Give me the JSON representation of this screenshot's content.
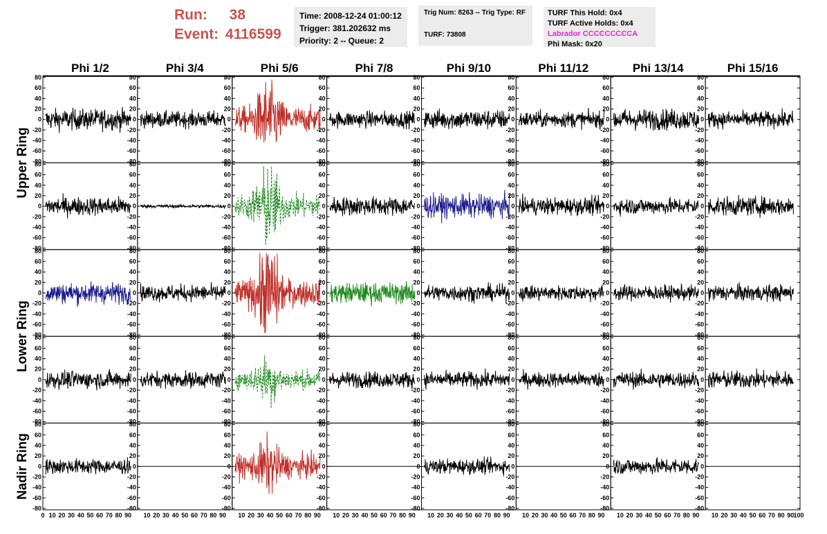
{
  "header": {
    "run_label": "Run:",
    "run_value": "38",
    "event_label": "Event:",
    "event_value": "4116599",
    "time_line": "Time: 2008-12-24 01:00:12",
    "trigger_line": "Trigger: 381.202632 ms",
    "priority_line": "Priority: 2 -- Queue: 2",
    "trig_line": "Trig Num: 8263 -- Trig Type: RF",
    "turf_line": "TURF: 73808",
    "turf_hold_line": "TURF This Hold: 0x4",
    "turf_active_line": "TURF Active Holds: 0x4",
    "labrador_line": "Labrador CCCCCCCCCA",
    "phi_mask_line": "Phi Mask: 0x20",
    "labrador_color": "#e02bd7",
    "run_color": "#c9534f"
  },
  "chart_data": {
    "type": "line",
    "columns": [
      "Phi 1/2",
      "Phi 3/4",
      "Phi 5/6",
      "Phi 7/8",
      "Phi 9/10",
      "Phi 11/12",
      "Phi 13/14",
      "Phi 15/16"
    ],
    "rings": [
      {
        "name": "Upper Ring",
        "rows": 2
      },
      {
        "name": "Lower Ring",
        "rows": 2
      },
      {
        "name": "Nadir Ring",
        "rows": 1
      }
    ],
    "xlim": [
      0,
      100
    ],
    "ylim": [
      -80,
      80
    ],
    "y_ticks": [
      "80",
      "60",
      "40",
      "20",
      "0",
      "-20",
      "-40",
      "-60",
      "-80"
    ],
    "x_ticks": [
      "10",
      "20",
      "30",
      "40",
      "50",
      "60",
      "70",
      "80",
      "90"
    ],
    "x_first_tick": "0",
    "x_last_tick": "100",
    "colors": {
      "black": "#000000",
      "red": "#c0302a",
      "green": "#1f8a1f",
      "blue": "#1c1c8c"
    },
    "panels": [
      [
        {
          "color": "black",
          "amp": 18,
          "dashed": false
        },
        {
          "color": "black",
          "amp": 14,
          "dashed": false
        },
        {
          "color": "red",
          "amp": 22,
          "burst": 50,
          "dashed": false
        },
        {
          "color": "black",
          "amp": 14,
          "dashed": false
        },
        {
          "color": "black",
          "amp": 17,
          "dashed": false
        },
        {
          "color": "black",
          "amp": 14,
          "dashed": false
        },
        {
          "color": "black",
          "amp": 18,
          "dashed": false
        },
        {
          "color": "black",
          "amp": 14,
          "dashed": false
        }
      ],
      [
        {
          "color": "black",
          "amp": 16,
          "dashed": false
        },
        {
          "color": "black",
          "amp": 3,
          "dashed": false
        },
        {
          "color": "green",
          "amp": 20,
          "burst": 60,
          "dashed": true
        },
        {
          "color": "black",
          "amp": 16,
          "dashed": false
        },
        {
          "color": "blue",
          "amp": 20,
          "dashed": false
        },
        {
          "color": "black",
          "amp": 15,
          "dashed": false
        },
        {
          "color": "black",
          "amp": 14,
          "dashed": false
        },
        {
          "color": "black",
          "amp": 16,
          "dashed": false
        }
      ],
      [
        {
          "color": "blue",
          "amp": 18,
          "dashed": false
        },
        {
          "color": "black",
          "amp": 14,
          "dashed": false
        },
        {
          "color": "red",
          "amp": 22,
          "burst": 70,
          "dashed": false
        },
        {
          "color": "green",
          "amp": 18,
          "dashed": false
        },
        {
          "color": "black",
          "amp": 14,
          "dashed": false
        },
        {
          "color": "black",
          "amp": 13,
          "dashed": false
        },
        {
          "color": "black",
          "amp": 13,
          "dashed": false
        },
        {
          "color": "black",
          "amp": 14,
          "dashed": false
        }
      ],
      [
        {
          "color": "black",
          "amp": 15,
          "dashed": false
        },
        {
          "color": "black",
          "amp": 14,
          "dashed": false
        },
        {
          "color": "green",
          "amp": 16,
          "burst": 28,
          "dashed": true
        },
        {
          "color": "black",
          "amp": 14,
          "dashed": false
        },
        {
          "color": "black",
          "amp": 14,
          "dashed": false
        },
        {
          "color": "black",
          "amp": 13,
          "dashed": false
        },
        {
          "color": "black",
          "amp": 14,
          "dashed": false
        },
        {
          "color": "black",
          "amp": 15,
          "dashed": false
        }
      ],
      [
        {
          "color": "black",
          "amp": 13,
          "dashed": false
        },
        {
          "color": "flat",
          "amp": 0,
          "dashed": false
        },
        {
          "color": "red",
          "amp": 20,
          "burst": 30,
          "dashed": false
        },
        {
          "color": "flat",
          "amp": 0,
          "dashed": false
        },
        {
          "color": "black",
          "amp": 13,
          "dashed": false
        },
        {
          "color": "flat",
          "amp": 0,
          "dashed": false
        },
        {
          "color": "black",
          "amp": 14,
          "dashed": false
        },
        {
          "color": "flat",
          "amp": 0,
          "dashed": false
        }
      ]
    ]
  }
}
